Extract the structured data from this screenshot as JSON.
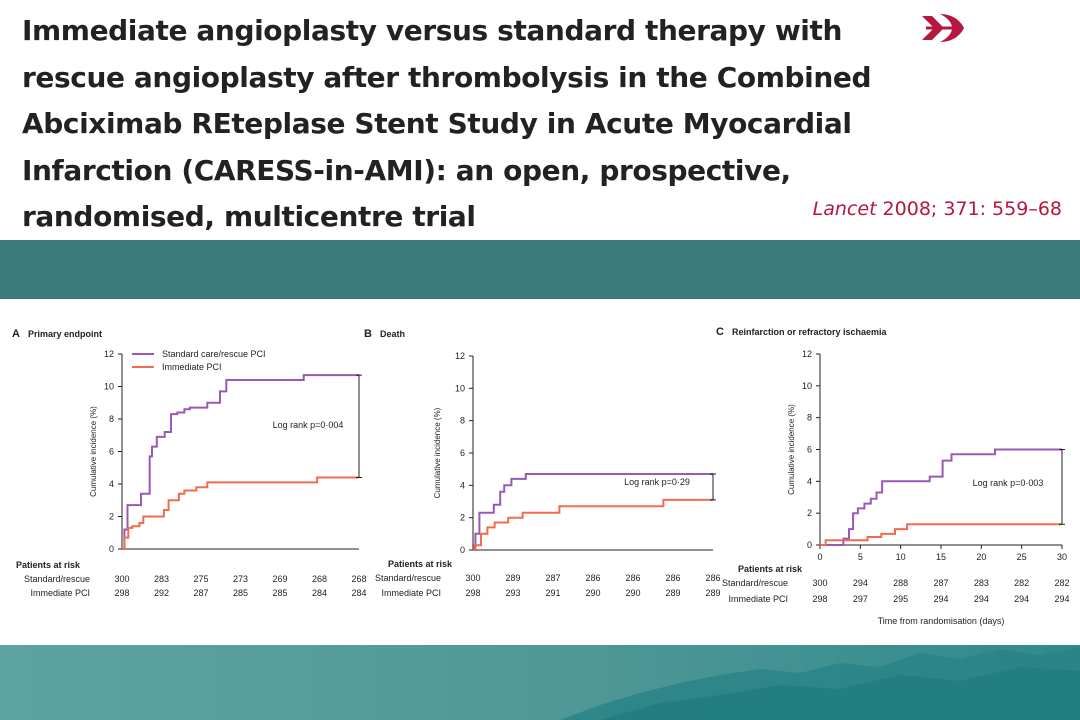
{
  "slide": {
    "title": "Immediate angioplasty versus standard therapy with rescue angioplasty after thrombolysis in the Combined Abciximab REteplase Stent Study in Acute Myocardial Infarction (CARESS-in-AMI): an open, prospective, randomised, multicentre trial",
    "citation_journal": "Lancet",
    "citation_rest": " 2008; 371: 559–68"
  },
  "colors": {
    "standard": "#9b59b6",
    "immediate": "#f26b4f",
    "brand": "#b5173f",
    "band": "#3a7a7a"
  },
  "logo_icon": "lancet-logo-icon",
  "chart_data": [
    {
      "type": "line",
      "panel_letter": "A",
      "title": "Primary endpoint",
      "ylabel": "Cumulative incidence (%)",
      "xlabel": "",
      "xlim": [
        0,
        30
      ],
      "ylim": [
        0,
        12
      ],
      "x_ticks": [],
      "y_ticks": [
        0,
        2,
        4,
        6,
        8,
        10,
        12
      ],
      "legend": [
        "Standard care/rescue PCI",
        "Immediate PCI"
      ],
      "annotation": "Log rank p=0·004",
      "series": [
        {
          "name": "Standard care/rescue PCI",
          "color_key": "standard",
          "x": [
            0,
            0.3,
            0.7,
            2.4,
            3.5,
            3.8,
            4.4,
            5.4,
            6.2,
            7.0,
            7.9,
            8.6,
            10.8,
            12.4,
            13.2,
            15.8,
            23.0,
            30
          ],
          "y": [
            0,
            1.2,
            2.7,
            3.4,
            5.7,
            6.3,
            6.9,
            7.2,
            8.3,
            8.4,
            8.6,
            8.7,
            9.0,
            9.7,
            10.4,
            10.4,
            10.7,
            10.7
          ]
        },
        {
          "name": "Immediate PCI",
          "color_key": "immediate",
          "x": [
            0,
            0.3,
            0.8,
            1.3,
            2.2,
            2.7,
            4.4,
            5.3,
            5.9,
            7.2,
            7.9,
            9.4,
            10.8,
            24.7,
            30
          ],
          "y": [
            0,
            0.7,
            1.3,
            1.4,
            1.6,
            2.0,
            2.0,
            2.4,
            3.0,
            3.4,
            3.6,
            3.8,
            4.1,
            4.4,
            4.4
          ]
        }
      ],
      "risk_table": {
        "header": "Patients at risk",
        "rows": [
          {
            "label": "Standard/rescue",
            "values": [
              "300",
              "283",
              "275",
              "273",
              "269",
              "268",
              "268"
            ]
          },
          {
            "label": "Immediate PCI",
            "values": [
              "298",
              "292",
              "287",
              "285",
              "285",
              "284",
              "284"
            ]
          }
        ]
      }
    },
    {
      "type": "line",
      "panel_letter": "B",
      "title": "Death",
      "ylabel": "Cumulative incidence (%)",
      "xlabel": "",
      "xlim": [
        0,
        30
      ],
      "ylim": [
        0,
        12
      ],
      "x_ticks": [],
      "y_ticks": [
        0,
        2,
        4,
        6,
        8,
        10,
        12
      ],
      "legend": [],
      "annotation": "Log rank p=0·29",
      "series": [
        {
          "name": "Standard care/rescue PCI",
          "color_key": "standard",
          "x": [
            0,
            0.3,
            0.8,
            2.6,
            3.4,
            3.9,
            4.8,
            6.6,
            30
          ],
          "y": [
            0,
            1.0,
            2.3,
            2.8,
            3.6,
            4.0,
            4.4,
            4.7,
            4.7
          ]
        },
        {
          "name": "Immediate PCI",
          "color_key": "immediate",
          "x": [
            0,
            0.2,
            1.0,
            1.8,
            2.7,
            4.4,
            6.2,
            10.8,
            23.8,
            30
          ],
          "y": [
            0,
            0.3,
            1.0,
            1.4,
            1.7,
            2.0,
            2.3,
            2.7,
            3.1,
            3.1
          ]
        }
      ],
      "risk_table": {
        "header": "Patients at risk",
        "rows": [
          {
            "label": "Standard/rescue",
            "values": [
              "300",
              "289",
              "287",
              "286",
              "286",
              "286",
              "286"
            ]
          },
          {
            "label": "Immediate PCI",
            "values": [
              "298",
              "293",
              "291",
              "290",
              "290",
              "289",
              "289"
            ]
          }
        ]
      }
    },
    {
      "type": "line",
      "panel_letter": "C",
      "title": "Reinfarction or refractory ischaemia",
      "ylabel": "Cumulative incidence (%)",
      "xlabel": "Time from randomisation (days)",
      "xlim": [
        0,
        30
      ],
      "ylim": [
        0,
        12
      ],
      "x_ticks": [
        0,
        5,
        10,
        15,
        20,
        25,
        30
      ],
      "y_ticks": [
        0,
        2,
        4,
        6,
        8,
        10,
        12
      ],
      "legend": [],
      "annotation": "Log rank p=0·003",
      "series": [
        {
          "name": "Standard care/rescue PCI",
          "color_key": "standard",
          "x": [
            0,
            2.9,
            3.6,
            4.1,
            4.7,
            5.5,
            6.3,
            7.0,
            7.7,
            12.3,
            13.6,
            15.2,
            16.3,
            21.7,
            30
          ],
          "y": [
            0,
            0.4,
            1.0,
            2.0,
            2.3,
            2.6,
            2.9,
            3.3,
            4.0,
            4.0,
            4.3,
            5.3,
            5.7,
            6.0,
            6.0
          ]
        },
        {
          "name": "Immediate PCI",
          "color_key": "immediate",
          "x": [
            0,
            0.7,
            5.9,
            7.6,
            9.3,
            10.8,
            30
          ],
          "y": [
            0,
            0.3,
            0.5,
            0.7,
            1.0,
            1.3,
            1.3
          ]
        }
      ],
      "risk_table": {
        "header": "Patients at risk",
        "rows": [
          {
            "label": "Standard/rescue",
            "values": [
              "300",
              "294",
              "288",
              "287",
              "283",
              "282",
              "282"
            ]
          },
          {
            "label": "Immediate PCI",
            "values": [
              "298",
              "297",
              "295",
              "294",
              "294",
              "294",
              "294"
            ]
          }
        ]
      }
    }
  ]
}
